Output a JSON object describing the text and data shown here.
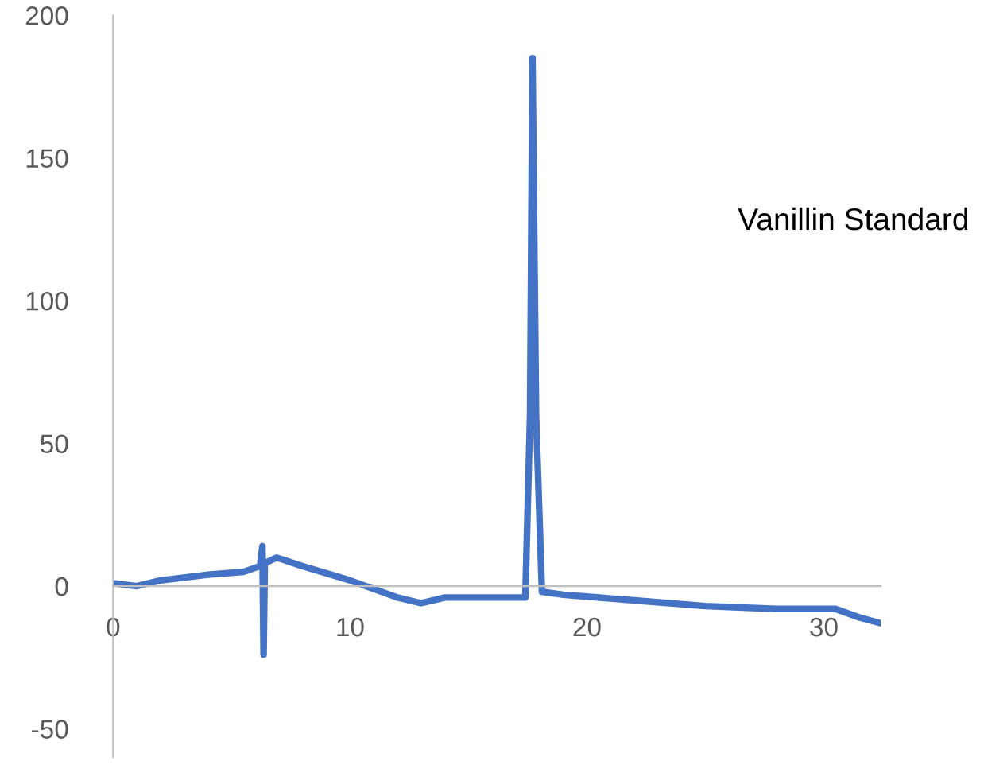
{
  "chart_data": {
    "type": "line",
    "x": [
      0,
      1,
      2,
      4,
      5.5,
      6.2,
      6.3,
      6.35,
      6.4,
      6.9,
      8,
      10,
      12,
      13,
      14,
      17.4,
      17.6,
      17.7,
      17.85,
      18.1,
      19,
      22,
      25,
      28,
      30,
      30.5,
      31.5,
      32.4
    ],
    "series": [
      {
        "color": "#4472c4",
        "values": [
          1,
          0,
          2,
          4,
          5,
          7,
          14,
          -24,
          8,
          10,
          7,
          2,
          -4,
          -6,
          -4,
          -4,
          60,
          185,
          60,
          -2,
          -3,
          -5,
          -7,
          -8,
          -8,
          -8,
          -11,
          -13
        ]
      }
    ],
    "xlim": [
      0,
      32.4
    ],
    "ylim": [
      -60,
      200
    ],
    "xticks": [
      0,
      10,
      20,
      30
    ],
    "yticks": [
      -50,
      0,
      50,
      100,
      150,
      200
    ],
    "annotations": [
      "Vanillin Standard"
    ],
    "grid": false,
    "legend": false,
    "marker": "none",
    "line_style": "solid"
  }
}
